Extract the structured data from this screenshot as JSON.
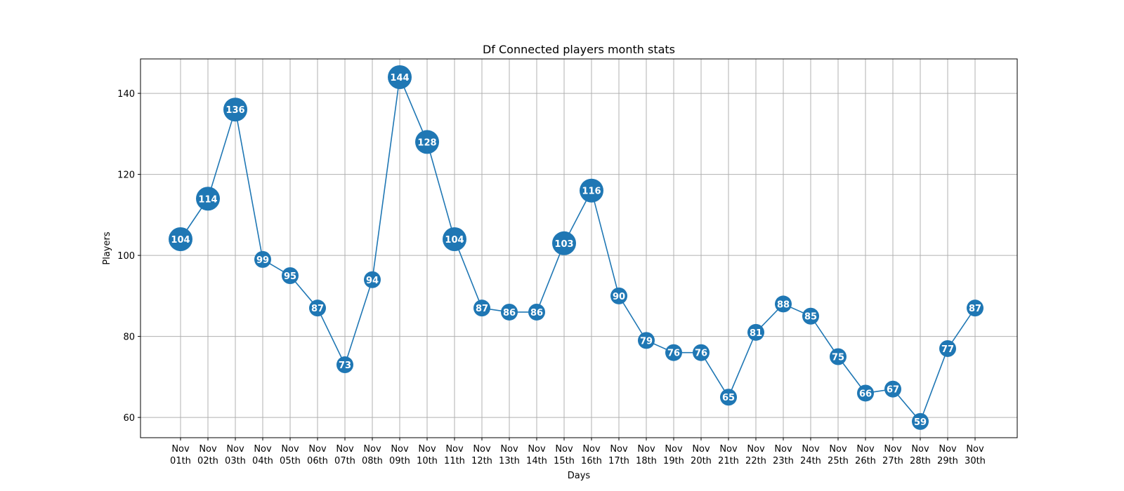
{
  "chart_data": {
    "type": "line",
    "title": "Df Connected players month stats",
    "xlabel": "Days",
    "ylabel": "Players",
    "categories": [
      [
        "Nov",
        "01th"
      ],
      [
        "Nov",
        "02th"
      ],
      [
        "Nov",
        "03th"
      ],
      [
        "Nov",
        "04th"
      ],
      [
        "Nov",
        "05th"
      ],
      [
        "Nov",
        "06th"
      ],
      [
        "Nov",
        "07th"
      ],
      [
        "Nov",
        "08th"
      ],
      [
        "Nov",
        "09th"
      ],
      [
        "Nov",
        "10th"
      ],
      [
        "Nov",
        "11th"
      ],
      [
        "Nov",
        "12th"
      ],
      [
        "Nov",
        "13th"
      ],
      [
        "Nov",
        "14th"
      ],
      [
        "Nov",
        "15th"
      ],
      [
        "Nov",
        "16th"
      ],
      [
        "Nov",
        "17th"
      ],
      [
        "Nov",
        "18th"
      ],
      [
        "Nov",
        "19th"
      ],
      [
        "Nov",
        "20th"
      ],
      [
        "Nov",
        "21th"
      ],
      [
        "Nov",
        "22th"
      ],
      [
        "Nov",
        "23th"
      ],
      [
        "Nov",
        "24th"
      ],
      [
        "Nov",
        "25th"
      ],
      [
        "Nov",
        "26th"
      ],
      [
        "Nov",
        "27th"
      ],
      [
        "Nov",
        "28th"
      ],
      [
        "Nov",
        "29th"
      ],
      [
        "Nov",
        "30th"
      ]
    ],
    "series": [
      {
        "values": [
          104,
          114,
          136,
          99,
          95,
          87,
          73,
          94,
          144,
          128,
          104,
          87,
          86,
          86,
          103,
          116,
          90,
          79,
          76,
          76,
          65,
          81,
          88,
          85,
          75,
          66,
          67,
          59,
          77,
          87
        ],
        "color": "#1f77b4"
      }
    ],
    "y_ticks": [
      60,
      80,
      100,
      120,
      140
    ],
    "ylim": [
      55,
      148.5
    ],
    "grid": true,
    "legend": "none"
  }
}
